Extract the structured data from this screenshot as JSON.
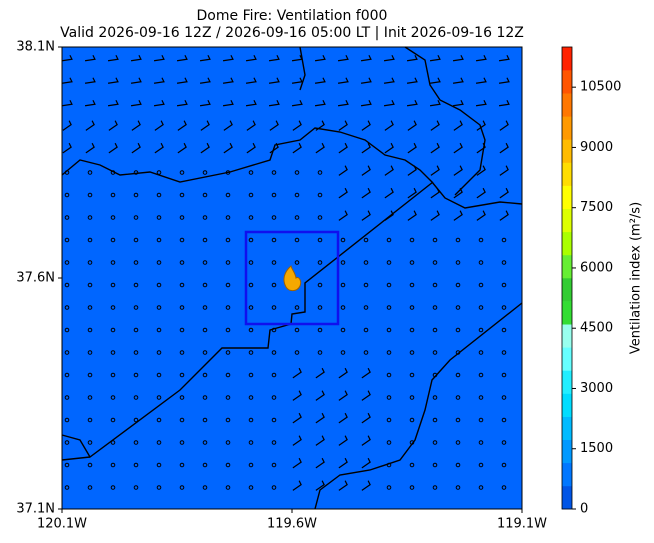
{
  "chart_data": {
    "type": "map",
    "title": "Dome Fire: Ventilation f000",
    "subtitle": "Valid 2026-09-16 12Z / 2026-09-16 05:00 LT | Init 2026-09-16 12Z",
    "xlim": [
      -120.1,
      -119.1
    ],
    "xticks": [
      {
        "value": -120.1,
        "label": "120.1W"
      },
      {
        "value": -119.6,
        "label": "119.6W"
      },
      {
        "value": -119.1,
        "label": "119.1W"
      }
    ],
    "ylim": [
      37.1,
      38.1
    ],
    "yticks": [
      {
        "value": 37.1,
        "label": "37.1N"
      },
      {
        "value": 37.6,
        "label": "37.6N"
      },
      {
        "value": 38.1,
        "label": "38.1N"
      }
    ],
    "field_color": "#0066ff",
    "colorbar": {
      "label": "Ventilation index (m²/s)",
      "lim": [
        0,
        11500
      ],
      "ticks": [
        0,
        1500,
        3000,
        4500,
        6000,
        7500,
        9000,
        10500
      ],
      "colors": [
        "#0055e6",
        "#0077ff",
        "#0099ff",
        "#00bbff",
        "#00ddff",
        "#22eeff",
        "#66ffff",
        "#99ffee",
        "#33dd33",
        "#33cc33",
        "#66ee33",
        "#aaff00",
        "#ddff00",
        "#ffff00",
        "#ffdd00",
        "#ffbb00",
        "#ff9900",
        "#ff7700",
        "#ff5500",
        "#ff2200"
      ]
    }
  }
}
